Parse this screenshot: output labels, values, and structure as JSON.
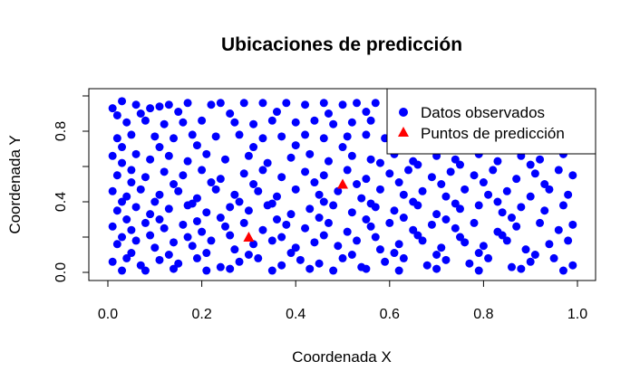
{
  "chart_data": {
    "type": "scatter",
    "title": "Ubicaciones de predicción",
    "xlabel": "Coordenada X",
    "ylabel": "Coordenada Y",
    "xlim": [
      0.0,
      1.0
    ],
    "ylim": [
      0.0,
      1.0
    ],
    "x_ticks": [
      "0.0",
      "0.2",
      "0.4",
      "0.6",
      "0.8",
      "1.0"
    ],
    "y_ticks": [
      "0.0",
      "0.4",
      "0.8"
    ],
    "grid": false,
    "legend_position": "top-right",
    "series": [
      {
        "name": "Datos observados",
        "marker": "circle",
        "color": "#0000FF",
        "points": [
          [
            0.01,
            0.93
          ],
          [
            0.02,
            0.89
          ],
          [
            0.03,
            0.97
          ],
          [
            0.06,
            0.95
          ],
          [
            0.09,
            0.93
          ],
          [
            0.11,
            0.94
          ],
          [
            0.13,
            0.95
          ],
          [
            0.17,
            0.96
          ],
          [
            0.22,
            0.95
          ],
          [
            0.24,
            0.96
          ],
          [
            0.29,
            0.96
          ],
          [
            0.33,
            0.96
          ],
          [
            0.38,
            0.96
          ],
          [
            0.42,
            0.95
          ],
          [
            0.46,
            0.96
          ],
          [
            0.5,
            0.95
          ],
          [
            0.53,
            0.96
          ],
          [
            0.57,
            0.96
          ],
          [
            0.04,
            0.85
          ],
          [
            0.08,
            0.86
          ],
          [
            0.12,
            0.84
          ],
          [
            0.16,
            0.85
          ],
          [
            0.2,
            0.86
          ],
          [
            0.27,
            0.85
          ],
          [
            0.31,
            0.84
          ],
          [
            0.35,
            0.86
          ],
          [
            0.4,
            0.85
          ],
          [
            0.44,
            0.86
          ],
          [
            0.48,
            0.84
          ],
          [
            0.52,
            0.85
          ],
          [
            0.56,
            0.86
          ],
          [
            0.02,
            0.76
          ],
          [
            0.05,
            0.78
          ],
          [
            0.1,
            0.77
          ],
          [
            0.14,
            0.76
          ],
          [
            0.18,
            0.78
          ],
          [
            0.23,
            0.77
          ],
          [
            0.28,
            0.78
          ],
          [
            0.33,
            0.76
          ],
          [
            0.37,
            0.77
          ],
          [
            0.42,
            0.78
          ],
          [
            0.46,
            0.76
          ],
          [
            0.51,
            0.77
          ],
          [
            0.55,
            0.78
          ],
          [
            0.59,
            0.76
          ],
          [
            0.64,
            0.78
          ],
          [
            0.68,
            0.77
          ],
          [
            0.72,
            0.76
          ],
          [
            0.77,
            0.78
          ],
          [
            0.81,
            0.77
          ],
          [
            0.01,
            0.66
          ],
          [
            0.03,
            0.62
          ],
          [
            0.06,
            0.67
          ],
          [
            0.09,
            0.64
          ],
          [
            0.13,
            0.66
          ],
          [
            0.17,
            0.63
          ],
          [
            0.21,
            0.67
          ],
          [
            0.25,
            0.64
          ],
          [
            0.3,
            0.66
          ],
          [
            0.34,
            0.62
          ],
          [
            0.39,
            0.65
          ],
          [
            0.43,
            0.67
          ],
          [
            0.47,
            0.63
          ],
          [
            0.52,
            0.66
          ],
          [
            0.56,
            0.64
          ],
          [
            0.61,
            0.67
          ],
          [
            0.65,
            0.63
          ],
          [
            0.7,
            0.66
          ],
          [
            0.74,
            0.64
          ],
          [
            0.79,
            0.67
          ],
          [
            0.83,
            0.63
          ],
          [
            0.88,
            0.66
          ],
          [
            0.92,
            0.64
          ],
          [
            0.97,
            0.67
          ],
          [
            0.02,
            0.55
          ],
          [
            0.05,
            0.58
          ],
          [
            0.08,
            0.54
          ],
          [
            0.12,
            0.57
          ],
          [
            0.16,
            0.55
          ],
          [
            0.2,
            0.58
          ],
          [
            0.24,
            0.53
          ],
          [
            0.29,
            0.56
          ],
          [
            0.33,
            0.58
          ],
          [
            0.37,
            0.54
          ],
          [
            0.42,
            0.57
          ],
          [
            0.46,
            0.55
          ],
          [
            0.51,
            0.58
          ],
          [
            0.55,
            0.53
          ],
          [
            0.6,
            0.56
          ],
          [
            0.64,
            0.58
          ],
          [
            0.69,
            0.54
          ],
          [
            0.73,
            0.57
          ],
          [
            0.78,
            0.55
          ],
          [
            0.82,
            0.58
          ],
          [
            0.87,
            0.53
          ],
          [
            0.91,
            0.56
          ],
          [
            0.96,
            0.58
          ],
          [
            0.99,
            0.55
          ],
          [
            0.01,
            0.46
          ],
          [
            0.04,
            0.43
          ],
          [
            0.07,
            0.47
          ],
          [
            0.11,
            0.44
          ],
          [
            0.15,
            0.46
          ],
          [
            0.19,
            0.42
          ],
          [
            0.23,
            0.47
          ],
          [
            0.27,
            0.44
          ],
          [
            0.32,
            0.46
          ],
          [
            0.36,
            0.43
          ],
          [
            0.4,
            0.47
          ],
          [
            0.45,
            0.44
          ],
          [
            0.49,
            0.46
          ],
          [
            0.54,
            0.42
          ],
          [
            0.58,
            0.47
          ],
          [
            0.63,
            0.44
          ],
          [
            0.67,
            0.46
          ],
          [
            0.72,
            0.43
          ],
          [
            0.76,
            0.47
          ],
          [
            0.81,
            0.44
          ],
          [
            0.85,
            0.46
          ],
          [
            0.9,
            0.43
          ],
          [
            0.94,
            0.47
          ],
          [
            0.98,
            0.44
          ],
          [
            0.02,
            0.35
          ],
          [
            0.06,
            0.37
          ],
          [
            0.09,
            0.33
          ],
          [
            0.13,
            0.36
          ],
          [
            0.17,
            0.38
          ],
          [
            0.21,
            0.34
          ],
          [
            0.26,
            0.37
          ],
          [
            0.3,
            0.35
          ],
          [
            0.34,
            0.38
          ],
          [
            0.39,
            0.33
          ],
          [
            0.43,
            0.36
          ],
          [
            0.48,
            0.38
          ],
          [
            0.52,
            0.34
          ],
          [
            0.57,
            0.37
          ],
          [
            0.61,
            0.35
          ],
          [
            0.66,
            0.38
          ],
          [
            0.7,
            0.33
          ],
          [
            0.75,
            0.36
          ],
          [
            0.79,
            0.38
          ],
          [
            0.84,
            0.34
          ],
          [
            0.88,
            0.37
          ],
          [
            0.93,
            0.35
          ],
          [
            0.97,
            0.38
          ],
          [
            0.01,
            0.26
          ],
          [
            0.05,
            0.24
          ],
          [
            0.08,
            0.28
          ],
          [
            0.12,
            0.25
          ],
          [
            0.16,
            0.27
          ],
          [
            0.2,
            0.23
          ],
          [
            0.25,
            0.26
          ],
          [
            0.29,
            0.28
          ],
          [
            0.33,
            0.24
          ],
          [
            0.38,
            0.27
          ],
          [
            0.42,
            0.25
          ],
          [
            0.47,
            0.28
          ],
          [
            0.51,
            0.23
          ],
          [
            0.56,
            0.26
          ],
          [
            0.6,
            0.28
          ],
          [
            0.65,
            0.24
          ],
          [
            0.69,
            0.27
          ],
          [
            0.74,
            0.25
          ],
          [
            0.78,
            0.28
          ],
          [
            0.83,
            0.23
          ],
          [
            0.87,
            0.26
          ],
          [
            0.92,
            0.28
          ],
          [
            0.96,
            0.24
          ],
          [
            0.99,
            0.27
          ],
          [
            0.02,
            0.16
          ],
          [
            0.06,
            0.18
          ],
          [
            0.1,
            0.14
          ],
          [
            0.14,
            0.17
          ],
          [
            0.18,
            0.15
          ],
          [
            0.22,
            0.18
          ],
          [
            0.27,
            0.13
          ],
          [
            0.31,
            0.16
          ],
          [
            0.35,
            0.18
          ],
          [
            0.4,
            0.14
          ],
          [
            0.44,
            0.17
          ],
          [
            0.49,
            0.15
          ],
          [
            0.53,
            0.18
          ],
          [
            0.58,
            0.13
          ],
          [
            0.62,
            0.16
          ],
          [
            0.67,
            0.18
          ],
          [
            0.71,
            0.14
          ],
          [
            0.76,
            0.17
          ],
          [
            0.8,
            0.15
          ],
          [
            0.85,
            0.18
          ],
          [
            0.89,
            0.13
          ],
          [
            0.94,
            0.16
          ],
          [
            0.98,
            0.18
          ],
          [
            0.01,
            0.06
          ],
          [
            0.04,
            0.08
          ],
          [
            0.07,
            0.04
          ],
          [
            0.11,
            0.07
          ],
          [
            0.15,
            0.05
          ],
          [
            0.19,
            0.08
          ],
          [
            0.24,
            0.03
          ],
          [
            0.28,
            0.06
          ],
          [
            0.32,
            0.08
          ],
          [
            0.37,
            0.04
          ],
          [
            0.41,
            0.07
          ],
          [
            0.45,
            0.05
          ],
          [
            0.5,
            0.08
          ],
          [
            0.54,
            0.03
          ],
          [
            0.59,
            0.06
          ],
          [
            0.63,
            0.08
          ],
          [
            0.68,
            0.04
          ],
          [
            0.72,
            0.07
          ],
          [
            0.77,
            0.05
          ],
          [
            0.81,
            0.08
          ],
          [
            0.86,
            0.03
          ],
          [
            0.9,
            0.06
          ],
          [
            0.95,
            0.08
          ],
          [
            0.99,
            0.04
          ],
          [
            0.03,
            0.01
          ],
          [
            0.08,
            0.01
          ],
          [
            0.14,
            0.02
          ],
          [
            0.21,
            0.01
          ],
          [
            0.26,
            0.02
          ],
          [
            0.35,
            0.01
          ],
          [
            0.43,
            0.02
          ],
          [
            0.48,
            0.01
          ],
          [
            0.55,
            0.02
          ],
          [
            0.62,
            0.01
          ],
          [
            0.7,
            0.02
          ],
          [
            0.79,
            0.01
          ],
          [
            0.88,
            0.02
          ],
          [
            0.97,
            0.01
          ],
          [
            0.07,
            0.9
          ],
          [
            0.15,
            0.91
          ],
          [
            0.26,
            0.9
          ],
          [
            0.36,
            0.91
          ],
          [
            0.47,
            0.9
          ],
          [
            0.55,
            0.91
          ],
          [
            0.62,
            0.72
          ],
          [
            0.7,
            0.72
          ],
          [
            0.86,
            0.73
          ],
          [
            0.94,
            0.72
          ],
          [
            0.03,
            0.71
          ],
          [
            0.11,
            0.71
          ],
          [
            0.19,
            0.72
          ],
          [
            0.31,
            0.71
          ],
          [
            0.4,
            0.72
          ],
          [
            0.5,
            0.71
          ],
          [
            0.58,
            0.62
          ],
          [
            0.66,
            0.61
          ],
          [
            0.75,
            0.61
          ],
          [
            0.9,
            0.61
          ],
          [
            0.05,
            0.51
          ],
          [
            0.14,
            0.5
          ],
          [
            0.22,
            0.51
          ],
          [
            0.31,
            0.5
          ],
          [
            0.44,
            0.51
          ],
          [
            0.53,
            0.5
          ],
          [
            0.62,
            0.51
          ],
          [
            0.71,
            0.5
          ],
          [
            0.8,
            0.51
          ],
          [
            0.93,
            0.5
          ],
          [
            0.03,
            0.4
          ],
          [
            0.1,
            0.4
          ],
          [
            0.18,
            0.39
          ],
          [
            0.28,
            0.4
          ],
          [
            0.35,
            0.39
          ],
          [
            0.46,
            0.4
          ],
          [
            0.56,
            0.39
          ],
          [
            0.65,
            0.4
          ],
          [
            0.74,
            0.39
          ],
          [
            0.83,
            0.4
          ],
          [
            0.04,
            0.3
          ],
          [
            0.11,
            0.3
          ],
          [
            0.19,
            0.29
          ],
          [
            0.24,
            0.31
          ],
          [
            0.36,
            0.3
          ],
          [
            0.45,
            0.31
          ],
          [
            0.55,
            0.3
          ],
          [
            0.63,
            0.31
          ],
          [
            0.72,
            0.3
          ],
          [
            0.86,
            0.31
          ],
          [
            0.03,
            0.2
          ],
          [
            0.09,
            0.21
          ],
          [
            0.17,
            0.2
          ],
          [
            0.26,
            0.21
          ],
          [
            0.37,
            0.2
          ],
          [
            0.46,
            0.21
          ],
          [
            0.57,
            0.2
          ],
          [
            0.66,
            0.21
          ],
          [
            0.75,
            0.2
          ],
          [
            0.84,
            0.21
          ],
          [
            0.05,
            0.11
          ],
          [
            0.13,
            0.1
          ],
          [
            0.21,
            0.11
          ],
          [
            0.3,
            0.1
          ],
          [
            0.39,
            0.11
          ],
          [
            0.52,
            0.1
          ],
          [
            0.61,
            0.11
          ],
          [
            0.7,
            0.1
          ],
          [
            0.79,
            0.11
          ],
          [
            0.91,
            0.1
          ]
        ]
      },
      {
        "name": "Puntos de predicción",
        "marker": "triangle",
        "color": "#FF0000",
        "points": [
          [
            0.3,
            0.2
          ],
          [
            0.5,
            0.5
          ]
        ]
      }
    ]
  }
}
